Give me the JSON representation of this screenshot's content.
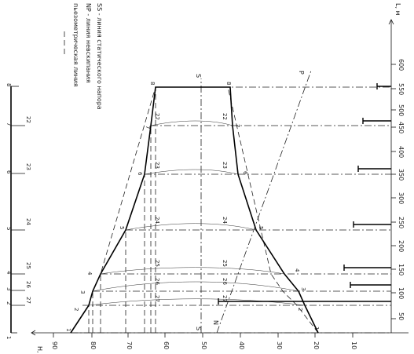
{
  "legend": {
    "piezo": "пьезометрическая линия",
    "np": "NP - линия невскипания",
    "ss": "SS - линия статического напора"
  },
  "axis_h": {
    "unit": "H, м",
    "ticks": [
      "90",
      "80",
      "70",
      "60",
      "50",
      "40",
      "30",
      "20",
      "10"
    ]
  },
  "axis_l": {
    "unit": "L, м",
    "ticks": [
      "50",
      "100",
      "150",
      "200",
      "250",
      "300",
      "350",
      "400",
      "450",
      "500",
      "550",
      "600"
    ]
  },
  "nodes": {
    "row": [
      "1",
      "2",
      "3",
      "4",
      "5",
      "6",
      "7",
      "8"
    ],
    "branches": [
      "27",
      "26",
      "25",
      "24",
      "23",
      "22"
    ],
    "left": [
      "1",
      "2",
      "3",
      "4",
      "5",
      "6",
      "7",
      "8"
    ],
    "right": [
      "1",
      "2",
      "3",
      "4",
      "5",
      "6",
      "7",
      "8"
    ],
    "mid_left": [
      "27",
      "26",
      "25",
      "24",
      "23",
      "22"
    ],
    "mid_right": [
      "27",
      "26",
      "25",
      "24",
      "23",
      "22"
    ]
  },
  "marks": {
    "s": "S",
    "p": "P",
    "n": "N"
  }
}
